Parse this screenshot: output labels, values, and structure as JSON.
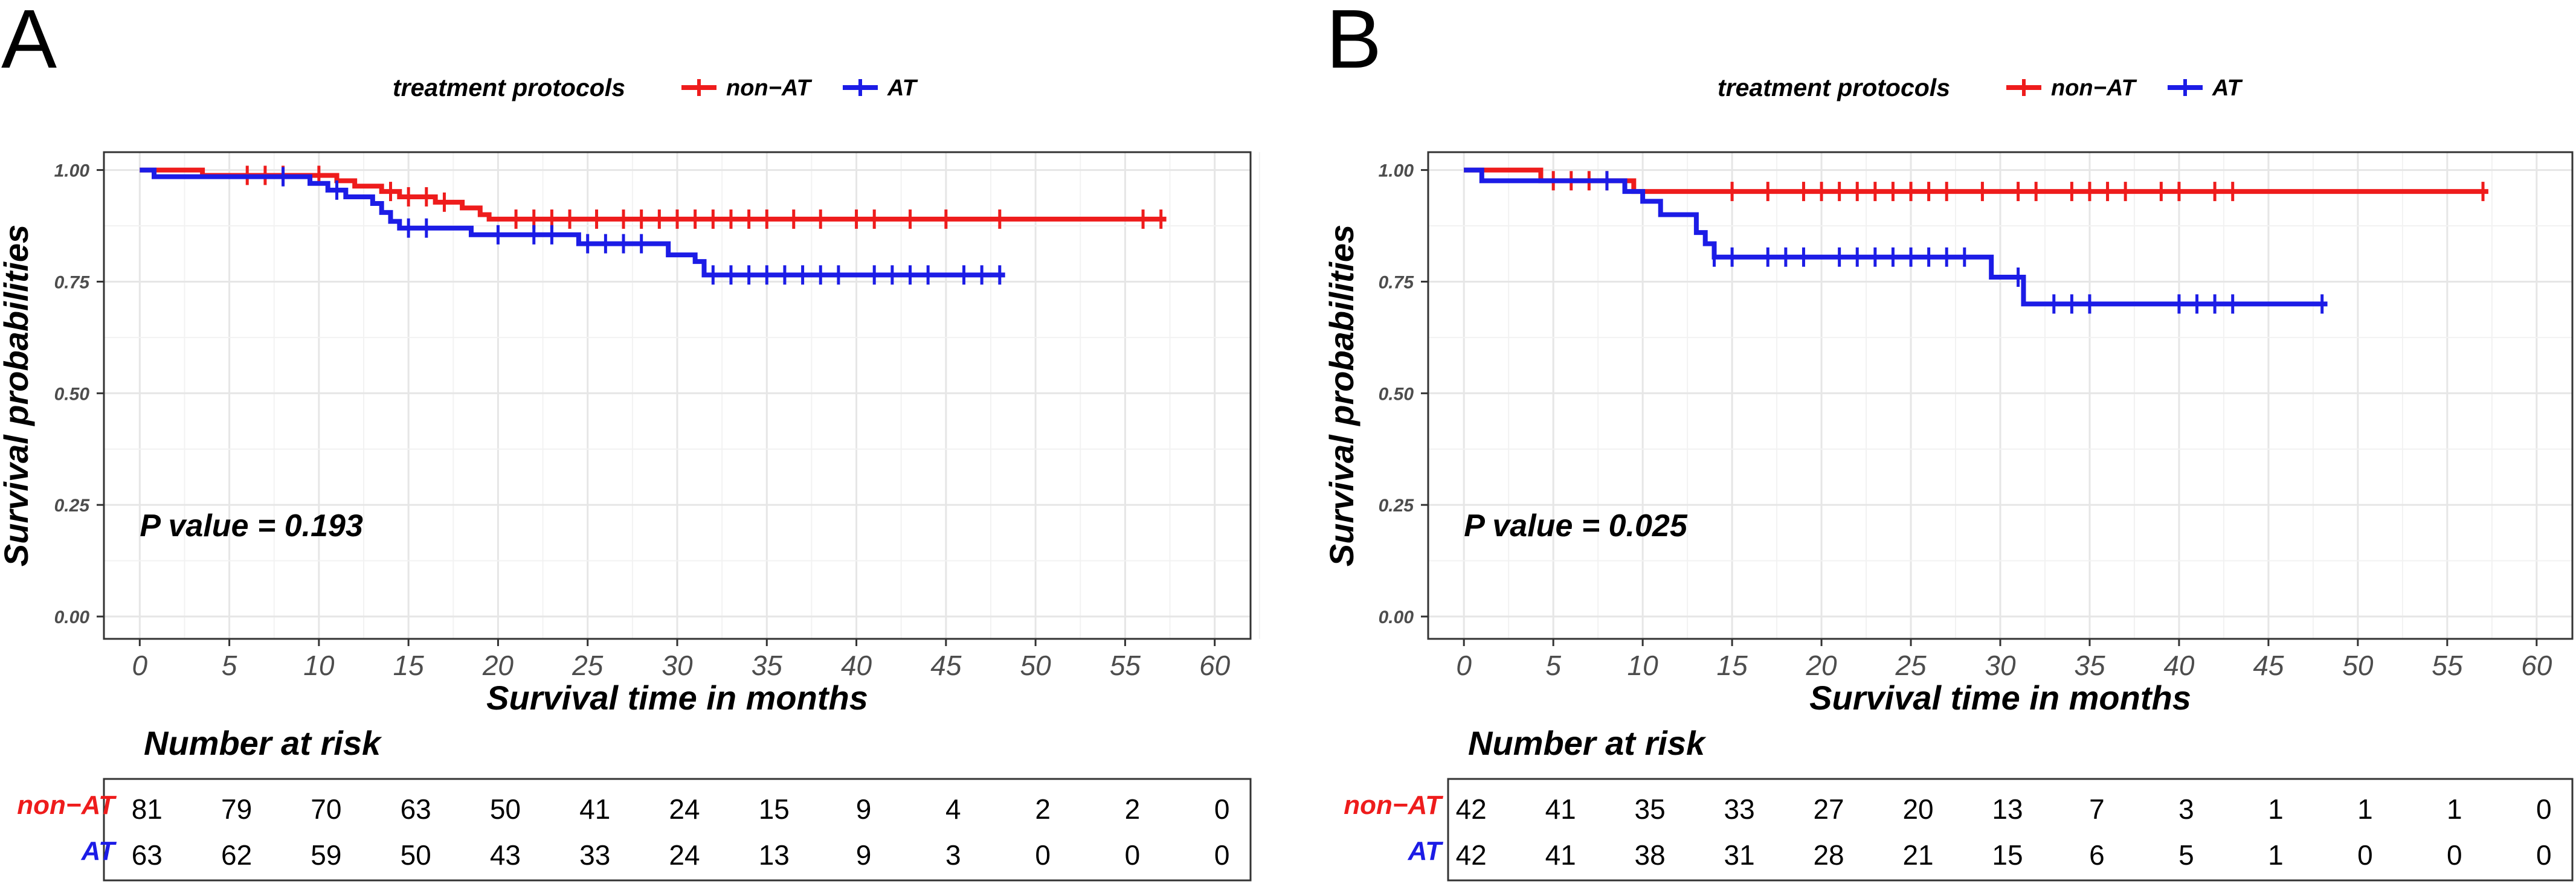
{
  "panels": [
    {
      "letter": "A",
      "pvalue": "P value = 0.193",
      "risk_title": "Number at risk",
      "risk_rows": [
        {
          "label": "non−AT",
          "color": "#ee1c1c",
          "counts": [
            "81",
            "79",
            "70",
            "63",
            "50",
            "41",
            "24",
            "15",
            "9",
            "4",
            "2",
            "2",
            "0"
          ]
        },
        {
          "label": "AT",
          "color": "#1c1ce6",
          "counts": [
            "63",
            "62",
            "59",
            "50",
            "43",
            "33",
            "24",
            "13",
            "9",
            "3",
            "0",
            "0",
            "0"
          ]
        }
      ]
    },
    {
      "letter": "B",
      "pvalue": "P value = 0.025",
      "risk_title": "Number at risk",
      "risk_rows": [
        {
          "label": "non−AT",
          "color": "#ee1c1c",
          "counts": [
            "42",
            "41",
            "35",
            "33",
            "27",
            "20",
            "13",
            "7",
            "3",
            "1",
            "1",
            "1",
            "0"
          ]
        },
        {
          "label": "AT",
          "color": "#1c1ce6",
          "counts": [
            "42",
            "41",
            "38",
            "31",
            "28",
            "21",
            "15",
            "6",
            "5",
            "1",
            "0",
            "0",
            "0"
          ]
        }
      ]
    }
  ],
  "legend": {
    "title": "treatment protocols",
    "items": [
      {
        "label": "non−AT",
        "color": "#ee1c1c"
      },
      {
        "label": "AT",
        "color": "#1c1ce6"
      }
    ]
  },
  "chart_data": [
    {
      "type": "line",
      "title": "A",
      "xlabel": "Survival time in months",
      "ylabel": "Survival probabilities",
      "xlim": [
        -2,
        62
      ],
      "ylim": [
        -0.05,
        1.04
      ],
      "xticks": [
        0,
        5,
        10,
        15,
        20,
        25,
        30,
        35,
        40,
        45,
        50,
        55,
        60
      ],
      "yticks": [
        0.0,
        0.25,
        0.5,
        0.75,
        1.0
      ],
      "ytick_labels": [
        "0.00",
        "0.25",
        "0.50",
        "0.75",
        "1.00"
      ],
      "series": [
        {
          "name": "non−AT",
          "color": "#ee1c1c",
          "steps": [
            [
              0,
              1.0
            ],
            [
              1.5,
              1.0
            ],
            [
              3.5,
              0.988
            ],
            [
              9,
              0.988
            ],
            [
              11,
              0.976
            ],
            [
              12,
              0.964
            ],
            [
              13.5,
              0.952
            ],
            [
              14.5,
              0.94
            ],
            [
              16.5,
              0.928
            ],
            [
              18,
              0.915
            ],
            [
              19,
              0.9
            ],
            [
              19.5,
              0.89
            ],
            [
              57.3,
              0.89
            ]
          ],
          "censor": [
            6,
            7,
            8,
            10,
            14,
            15,
            16,
            17,
            21,
            22,
            23,
            24,
            25.5,
            27,
            28,
            29,
            30,
            31,
            32,
            33,
            34,
            35,
            36.5,
            38,
            40,
            41,
            43,
            45,
            48,
            56,
            57
          ]
        },
        {
          "name": "AT",
          "color": "#1c1ce6",
          "steps": [
            [
              0,
              1.0
            ],
            [
              0.8,
              0.985
            ],
            [
              8,
              0.985
            ],
            [
              9.5,
              0.97
            ],
            [
              10.5,
              0.955
            ],
            [
              11.5,
              0.94
            ],
            [
              13,
              0.925
            ],
            [
              13.5,
              0.905
            ],
            [
              14,
              0.885
            ],
            [
              14.5,
              0.87
            ],
            [
              18,
              0.87
            ],
            [
              18.5,
              0.855
            ],
            [
              24,
              0.855
            ],
            [
              24.5,
              0.835
            ],
            [
              29,
              0.835
            ],
            [
              29.5,
              0.81
            ],
            [
              31,
              0.795
            ],
            [
              31.5,
              0.765
            ],
            [
              48.3,
              0.765
            ]
          ],
          "censor": [
            8,
            11,
            15,
            16,
            20,
            22,
            23,
            25,
            26,
            27,
            28,
            32,
            33,
            34,
            35,
            36,
            37,
            38,
            39,
            41,
            42,
            43,
            44,
            46,
            47,
            48
          ]
        }
      ]
    },
    {
      "type": "line",
      "title": "B",
      "xlabel": "Survival time in months",
      "ylabel": "Survival probabilities",
      "xlim": [
        -2,
        62
      ],
      "ylim": [
        -0.05,
        1.04
      ],
      "xticks": [
        0,
        5,
        10,
        15,
        20,
        25,
        30,
        35,
        40,
        45,
        50,
        55,
        60
      ],
      "yticks": [
        0.0,
        0.25,
        0.5,
        0.75,
        1.0
      ],
      "ytick_labels": [
        "0.00",
        "0.25",
        "0.50",
        "0.75",
        "1.00"
      ],
      "series": [
        {
          "name": "non−AT",
          "color": "#ee1c1c",
          "steps": [
            [
              0,
              1.0
            ],
            [
              4,
              1.0
            ],
            [
              4.3,
              0.976
            ],
            [
              9,
              0.976
            ],
            [
              9.5,
              0.952
            ],
            [
              57.3,
              0.952
            ]
          ],
          "censor": [
            5,
            6,
            7,
            8,
            15,
            17,
            19,
            20,
            21,
            22,
            23,
            24,
            25,
            26,
            27,
            29,
            31,
            32,
            34,
            35,
            36,
            37,
            39,
            40,
            42,
            43,
            57
          ]
        },
        {
          "name": "AT",
          "color": "#1c1ce6",
          "steps": [
            [
              0,
              1.0
            ],
            [
              1,
              0.976
            ],
            [
              8,
              0.976
            ],
            [
              9,
              0.952
            ],
            [
              10,
              0.93
            ],
            [
              11,
              0.9
            ],
            [
              12.5,
              0.9
            ],
            [
              13,
              0.86
            ],
            [
              13.5,
              0.835
            ],
            [
              14,
              0.805
            ],
            [
              29,
              0.805
            ],
            [
              29.5,
              0.76
            ],
            [
              31,
              0.76
            ],
            [
              31.3,
              0.7
            ],
            [
              48.3,
              0.7
            ]
          ],
          "censor": [
            8,
            14,
            15,
            17,
            18,
            19,
            21,
            22,
            23,
            24,
            25,
            26,
            27,
            28,
            31,
            33,
            34,
            35,
            40,
            41,
            42,
            43,
            48
          ]
        }
      ]
    }
  ]
}
